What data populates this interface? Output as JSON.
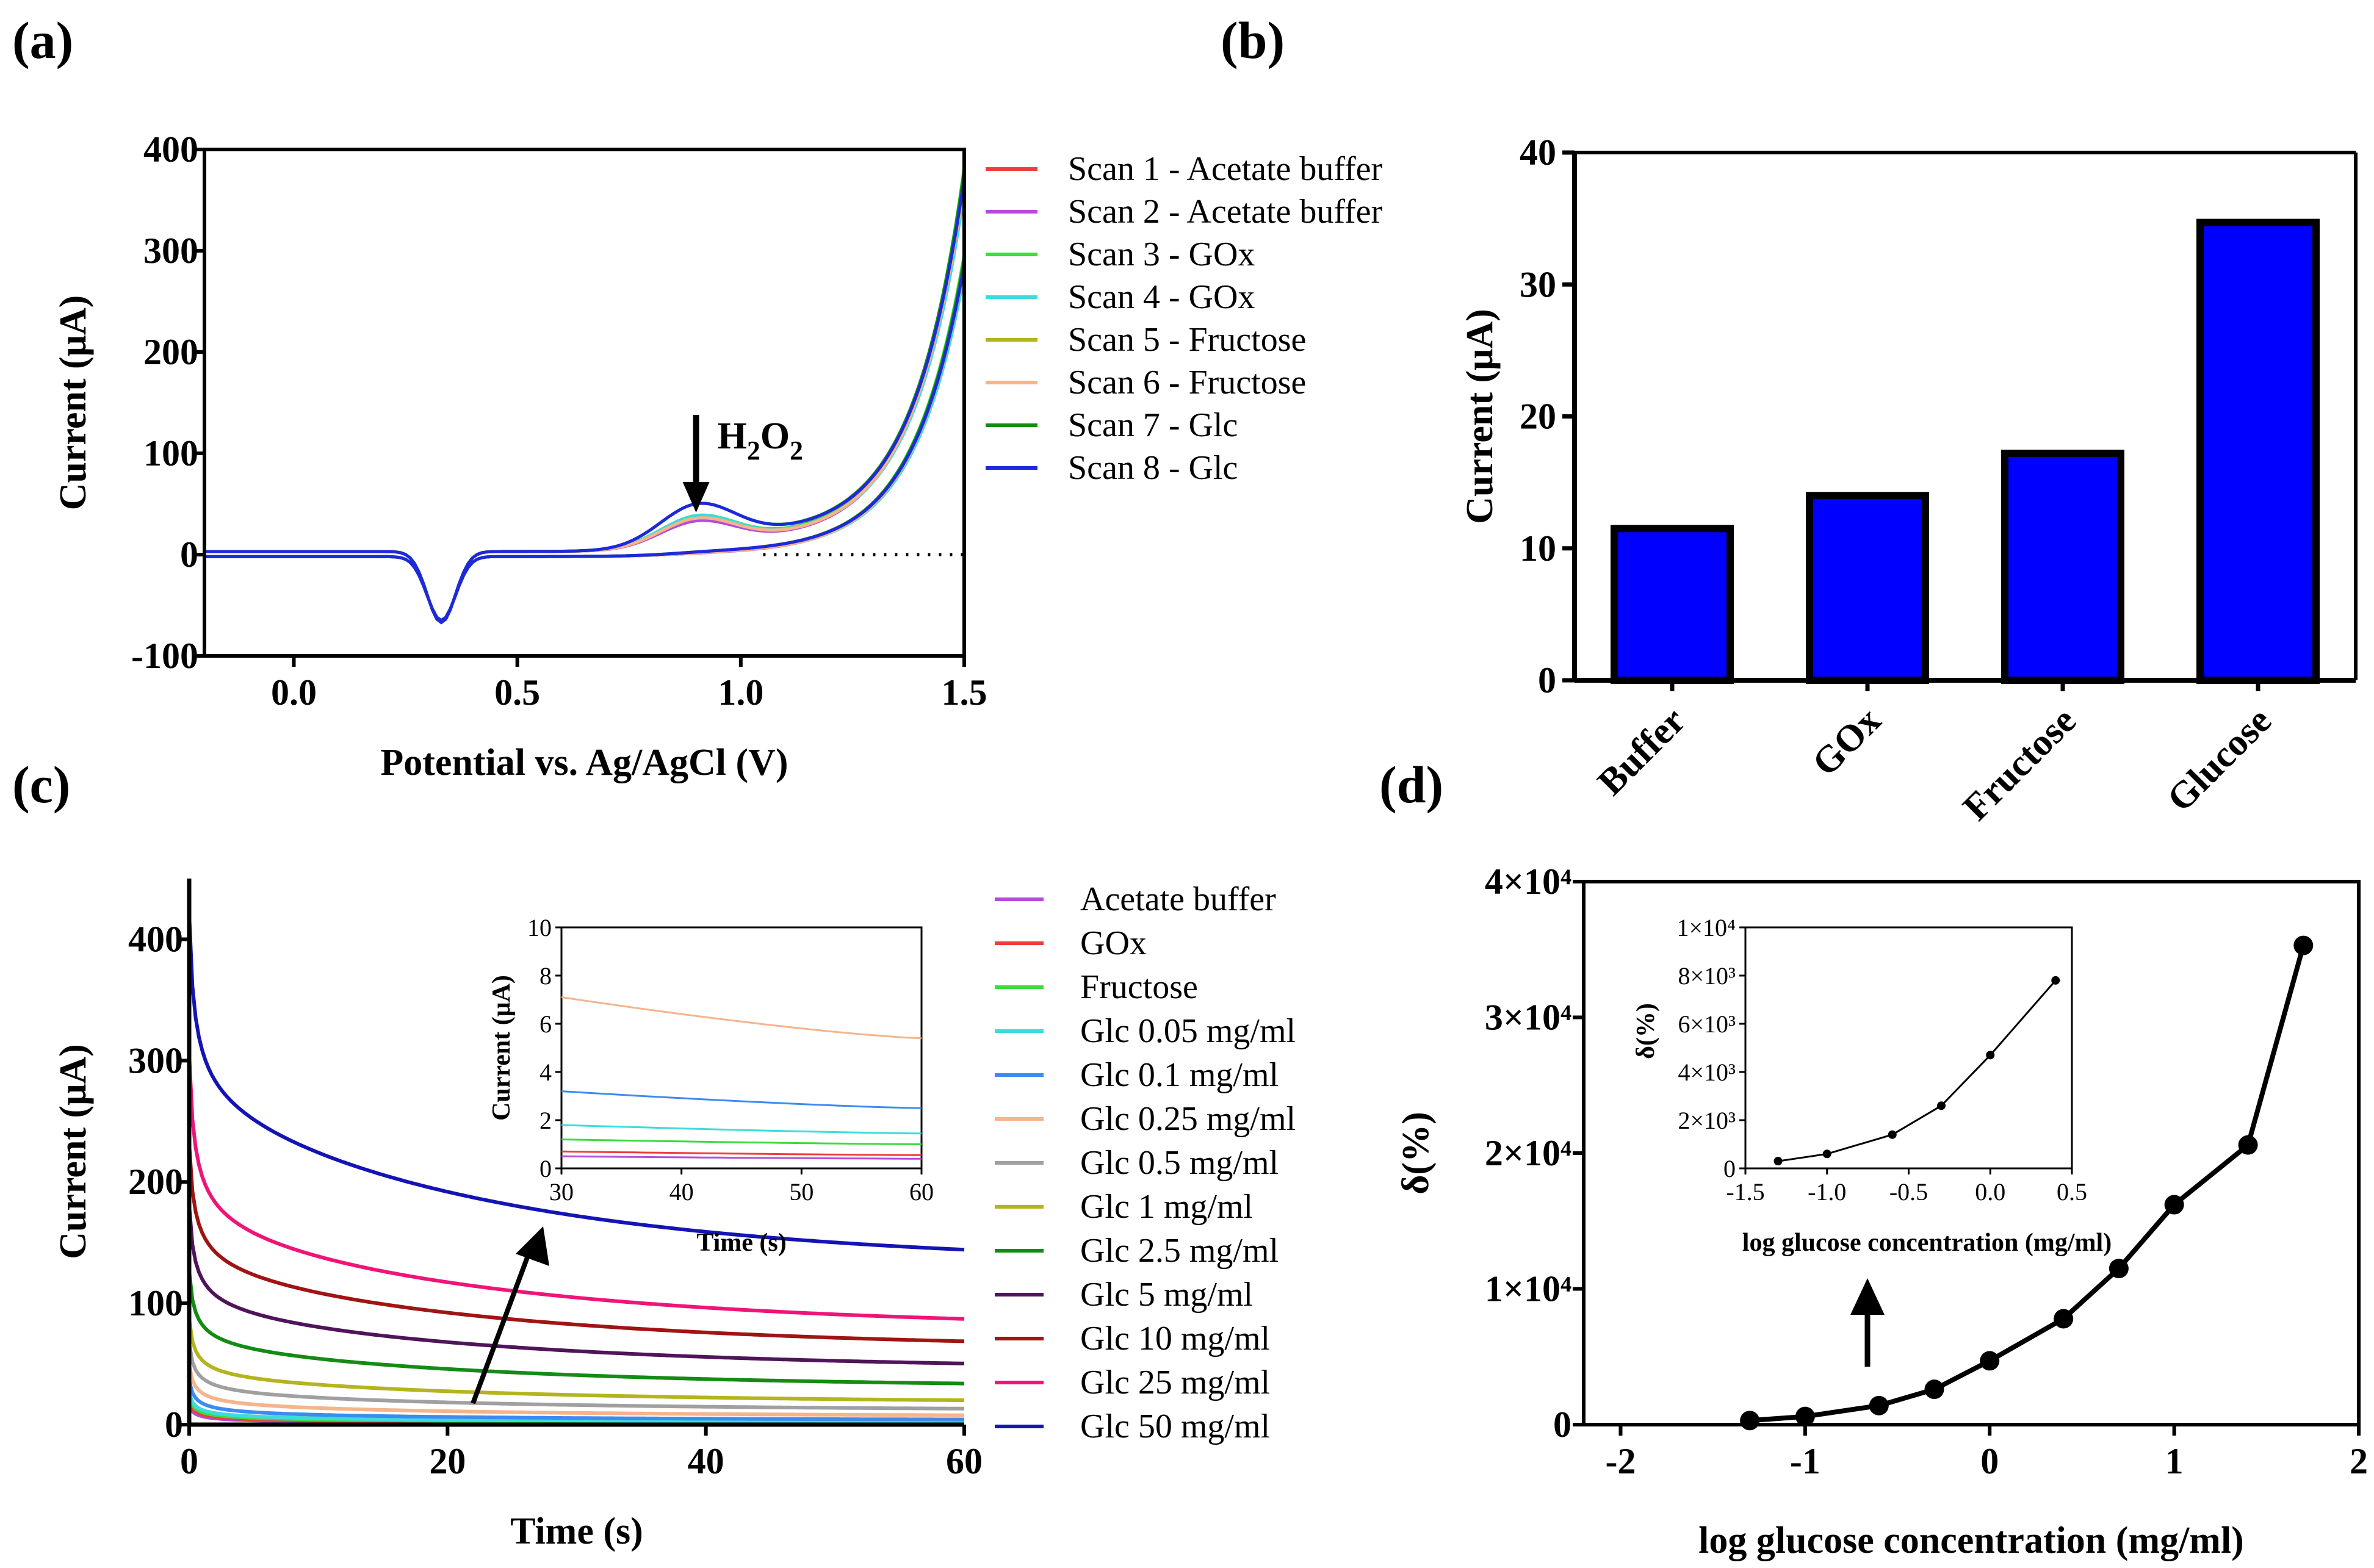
{
  "panels": {
    "a": "(a)",
    "b": "(b)",
    "c": "(c)",
    "d": "(d)"
  },
  "chart_data": [
    {
      "id": "a",
      "type": "line",
      "title": "",
      "xlabel": "Potential vs. Ag/AgCl (V)",
      "ylabel": "Current (μA)",
      "xlim": [
        -0.2,
        1.5
      ],
      "ylim": [
        -100,
        400
      ],
      "xticks": [
        0.0,
        0.5,
        1.0,
        1.5
      ],
      "xtick_labels": [
        "0.0",
        "0.5",
        "1.0",
        "1.5"
      ],
      "yticks": [
        -100,
        0,
        100,
        200,
        300,
        400
      ],
      "ytick_labels": [
        "-100",
        "0",
        "100",
        "200",
        "300",
        "400"
      ],
      "annotation": {
        "text_main": "H",
        "sub1": "2",
        "mid": "O",
        "sub2": "2",
        "x": 0.9,
        "y": 35
      },
      "series": [
        {
          "name": "Scan 1 - Acetate buffer",
          "color": "#f03c3c",
          "peak": 22,
          "tail": 1.0
        },
        {
          "name": "Scan 2 - Acetate buffer",
          "color": "#b44bdc",
          "peak": 22,
          "tail": 1.0
        },
        {
          "name": "Scan 3 - GOx",
          "color": "#3cdc3c",
          "peak": 26,
          "tail": 1.04
        },
        {
          "name": "Scan 4 - GOx",
          "color": "#3cdcdc",
          "peak": 26,
          "tail": 0.97
        },
        {
          "name": "Scan 5 - Fructose",
          "color": "#b4b41e",
          "peak": 24,
          "tail": 1.0
        },
        {
          "name": "Scan 6 - Fructose",
          "color": "#f5b48c",
          "peak": 24,
          "tail": 1.0
        },
        {
          "name": "Scan 7 - Glc",
          "color": "#148c14",
          "peak": 35,
          "tail": 1.02
        },
        {
          "name": "Scan 8 - Glc",
          "color": "#1e28dc",
          "peak": 35,
          "tail": 1.0
        }
      ]
    },
    {
      "id": "b",
      "type": "bar",
      "title": "",
      "xlabel": "",
      "ylabel": "Current (μA)",
      "categories": [
        "Buffer",
        "GOx",
        "Fructose",
        "Glucose"
      ],
      "values": [
        11.5,
        14.0,
        17.2,
        34.7
      ],
      "ylim": [
        0,
        40
      ],
      "yticks": [
        0,
        10,
        20,
        30,
        40
      ],
      "ytick_labels": [
        "0",
        "10",
        "20",
        "30",
        "40"
      ],
      "bar_color": "#0000ff"
    },
    {
      "id": "c",
      "type": "line",
      "title": "",
      "xlabel": "Time (s)",
      "ylabel": "Current (μA)",
      "xlim": [
        0,
        60
      ],
      "ylim": [
        0,
        450
      ],
      "xticks": [
        0,
        20,
        40,
        60
      ],
      "xtick_labels": [
        "0",
        "20",
        "40",
        "60"
      ],
      "yticks": [
        0,
        100,
        200,
        300,
        400
      ],
      "ytick_labels": [
        "0",
        "100",
        "200",
        "300",
        "400"
      ],
      "series": [
        {
          "name": "Acetate buffer",
          "color": "#b44bdc",
          "final": 0.4,
          "start": 25
        },
        {
          "name": "GOx",
          "color": "#f03c3c",
          "final": 0.6,
          "start": 30
        },
        {
          "name": "Fructose",
          "color": "#3cdc3c",
          "final": 1.0,
          "start": 35
        },
        {
          "name": "Glc 0.05 mg/ml",
          "color": "#3cdcdc",
          "final": 1.4,
          "start": 40
        },
        {
          "name": "Glc 0.1 mg/ml",
          "color": "#3c8cf0",
          "final": 2.5,
          "start": 55
        },
        {
          "name": "Glc 0.25 mg/ml",
          "color": "#f5b48c",
          "final": 5.4,
          "start": 70
        },
        {
          "name": "Glc 0.5 mg/ml",
          "color": "#a0a0a0",
          "final": 10,
          "start": 90
        },
        {
          "name": "Glc 1 mg/ml",
          "color": "#b4b41e",
          "final": 16,
          "start": 110
        },
        {
          "name": "Glc 2.5 mg/ml",
          "color": "#148c14",
          "final": 28,
          "start": 150
        },
        {
          "name": "Glc 5 mg/ml",
          "color": "#50145a",
          "final": 42,
          "start": 210
        },
        {
          "name": "Glc 10 mg/ml",
          "color": "#a01414",
          "final": 58,
          "start": 260
        },
        {
          "name": "Glc 25 mg/ml",
          "color": "#f01478",
          "final": 73,
          "start": 350
        },
        {
          "name": "Glc 50 mg/ml",
          "color": "#1414b4",
          "final": 125,
          "start": 430
        }
      ],
      "inset": {
        "xlabel": "Time (s)",
        "ylabel": "Current (μA)",
        "xlim": [
          30,
          60
        ],
        "ylim": [
          0,
          10
        ],
        "xticks": [
          30,
          40,
          50,
          60
        ],
        "xtick_labels": [
          "30",
          "40",
          "50",
          "60"
        ],
        "yticks": [
          0,
          2,
          4,
          6,
          8,
          10
        ],
        "ytick_labels": [
          "0",
          "2",
          "4",
          "6",
          "8",
          "10"
        ],
        "series": [
          {
            "color": "#f5b48c",
            "y0": 7.1,
            "y1": 5.4
          },
          {
            "color": "#3c8cf0",
            "y0": 3.2,
            "y1": 2.5
          },
          {
            "color": "#3cdcdc",
            "y0": 1.8,
            "y1": 1.45
          },
          {
            "color": "#3cdc3c",
            "y0": 1.2,
            "y1": 1.0
          },
          {
            "color": "#f03c3c",
            "y0": 0.7,
            "y1": 0.55
          },
          {
            "color": "#b44bdc",
            "y0": 0.5,
            "y1": 0.4
          }
        ]
      }
    },
    {
      "id": "d",
      "type": "line",
      "title": "",
      "xlabel": "log glucose concentration (mg/ml)",
      "ylabel": "δ(%)",
      "xlim": [
        -2.2,
        2.0
      ],
      "ylim": [
        0,
        40000
      ],
      "xticks": [
        -2,
        -1,
        0,
        1,
        2
      ],
      "xtick_labels": [
        "-2",
        "-1",
        "0",
        "1",
        "2"
      ],
      "yticks": [
        0,
        10000,
        20000,
        30000,
        40000
      ],
      "ytick_labels": [
        "0",
        "1×10⁴",
        "2×10⁴",
        "3×10⁴",
        "4×10⁴"
      ],
      "x": [
        -1.3,
        -1.0,
        -0.6,
        -0.3,
        0.0,
        0.4,
        0.7,
        1.0,
        1.4,
        1.7
      ],
      "y": [
        300,
        600,
        1400,
        2600,
        4700,
        7800,
        11500,
        16200,
        20600,
        35300
      ],
      "inset": {
        "xlabel": "log glucose concentration (mg/ml)",
        "ylabel": "δ(%)",
        "xlim": [
          -1.5,
          0.5
        ],
        "ylim": [
          0,
          10000
        ],
        "xticks": [
          -1.5,
          -1.0,
          -0.5,
          0.0,
          0.5
        ],
        "xtick_labels": [
          "-1.5",
          "-1.0",
          "-0.5",
          "0.0",
          "0.5"
        ],
        "yticks": [
          0,
          2000,
          4000,
          6000,
          8000,
          10000
        ],
        "ytick_labels": [
          "0",
          "2×10³",
          "4×10³",
          "6×10³",
          "8×10³",
          "1×10⁴"
        ],
        "x": [
          -1.3,
          -1.0,
          -0.6,
          -0.3,
          0.0,
          0.4
        ],
        "y": [
          300,
          600,
          1400,
          2600,
          4700,
          7800
        ]
      }
    }
  ]
}
